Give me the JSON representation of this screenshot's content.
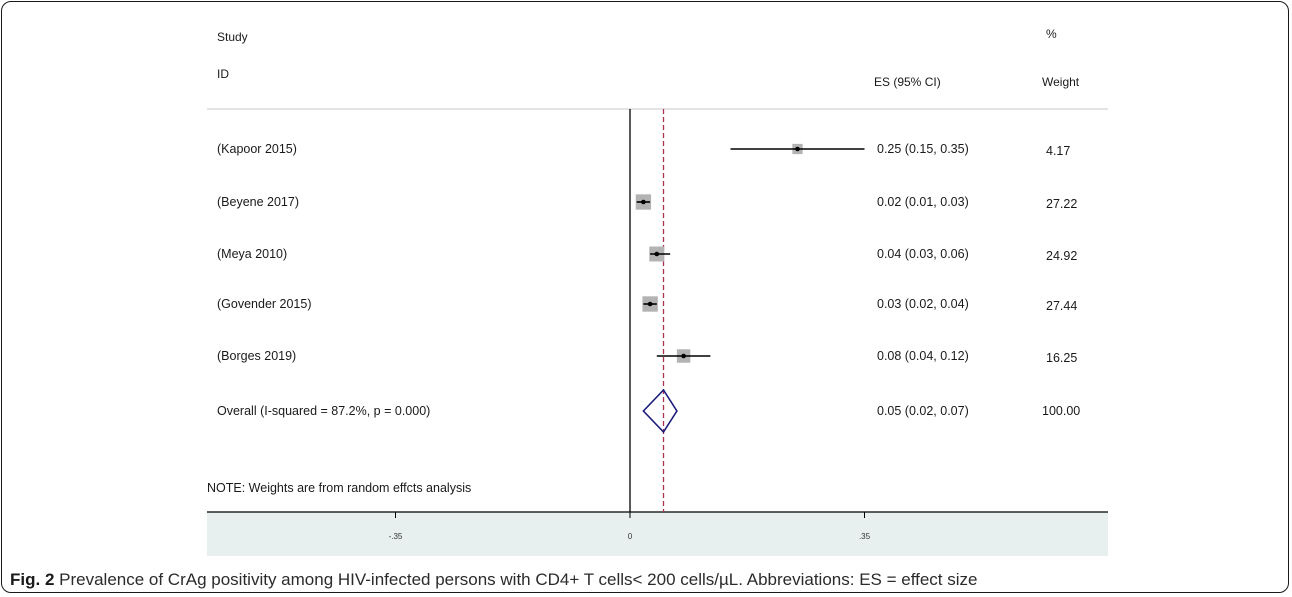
{
  "header": {
    "study": "Study",
    "id": "ID",
    "es": "ES (95% CI)",
    "pct": "%",
    "weight": "Weight"
  },
  "note": "NOTE: Weights are from random effcts analysis",
  "caption": {
    "label": "Fig. 2",
    "text": " Prevalence of CrAg positivity among HIV-infected persons with CD4+ T cells< 200 cells/µL. Abbreviations: ES = effect size"
  },
  "chart_data": {
    "type": "forest",
    "studies": [
      {
        "label": "(Kapoor 2015)",
        "es": 0.25,
        "lower": 0.15,
        "upper": 0.35,
        "es_text": "0.25 (0.15, 0.35)",
        "weight": 4.17,
        "weight_text": "4.17"
      },
      {
        "label": "(Beyene 2017)",
        "es": 0.02,
        "lower": 0.01,
        "upper": 0.03,
        "es_text": "0.02 (0.01, 0.03)",
        "weight": 27.22,
        "weight_text": "27.22"
      },
      {
        "label": "(Meya 2010)",
        "es": 0.04,
        "lower": 0.03,
        "upper": 0.06,
        "es_text": "0.04 (0.03, 0.06)",
        "weight": 24.92,
        "weight_text": "24.92"
      },
      {
        "label": "(Govender 2015)",
        "es": 0.03,
        "lower": 0.02,
        "upper": 0.04,
        "es_text": "0.03 (0.02, 0.04)",
        "weight": 27.44,
        "weight_text": "27.44"
      },
      {
        "label": "(Borges 2019)",
        "es": 0.08,
        "lower": 0.04,
        "upper": 0.12,
        "es_text": "0.08 (0.04, 0.12)",
        "weight": 16.25,
        "weight_text": "16.25"
      }
    ],
    "overall": {
      "label": "Overall  (I-squared = 87.2%, p = 0.000)",
      "es": 0.05,
      "lower": 0.02,
      "upper": 0.07,
      "es_text": "0.05 (0.02, 0.07)",
      "weight_text": "100.00"
    },
    "null_line": 0,
    "xticks": [
      -0.35,
      0,
      0.35
    ],
    "xtick_labels": [
      "-.35",
      "0",
      ".35"
    ],
    "xlim": [
      -0.5,
      0.5
    ],
    "colors": {
      "box": "#b3b3b3",
      "ci": "#000000",
      "diamond": "#1a1a7a",
      "ref_line": "#b03050",
      "axis_band": "#e7f0ef"
    }
  }
}
